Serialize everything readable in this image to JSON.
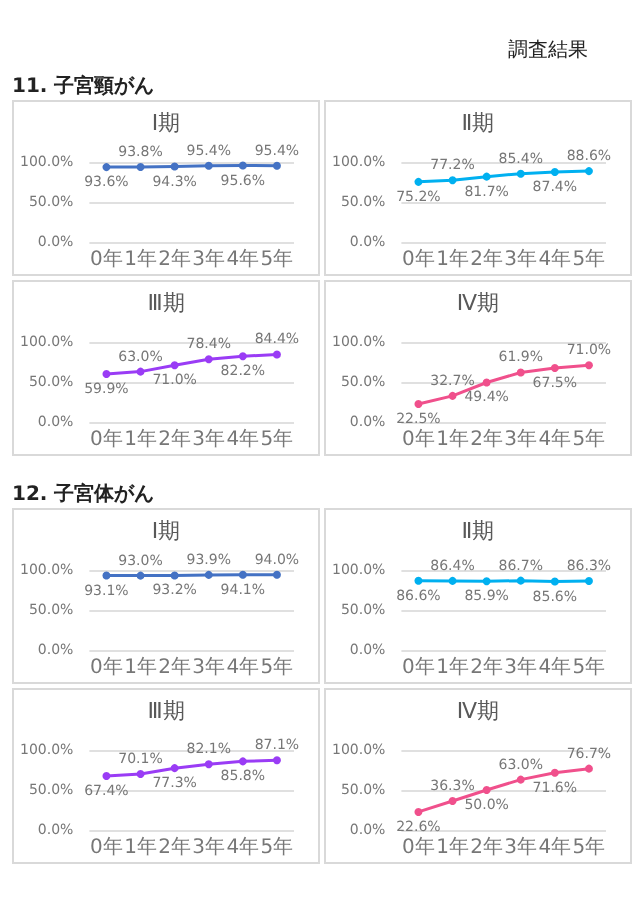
{
  "chart_data": [
    {
      "type": "line",
      "title": "Ⅰ期",
      "subtitle": "11. 子宮頸がん",
      "annotations": [
        "調査結果"
      ],
      "categories": [
        "0年",
        "1年",
        "2年",
        "3年",
        "4年",
        "5年"
      ],
      "values": [
        93.6,
        93.8,
        94.3,
        95.4,
        95.6,
        95.4
      ],
      "value_labels": [
        "93.6%",
        "93.8%",
        "94.3%",
        "95.4%",
        "95.6%",
        "95.4%"
      ],
      "color": "#4472c4",
      "ylim": [
        0,
        100
      ],
      "yticks": [
        {
          "value": 0,
          "label": "0.0%"
        },
        {
          "value": 50,
          "label": "50.0%"
        },
        {
          "value": 100,
          "label": "100.0%"
        }
      ],
      "grid": "y",
      "marker": "circle"
    },
    {
      "type": "line",
      "title": "Ⅱ期",
      "categories": [
        "0年",
        "1年",
        "2年",
        "3年",
        "4年",
        "5年"
      ],
      "values": [
        75.2,
        77.2,
        81.7,
        85.4,
        87.4,
        88.6
      ],
      "value_labels": [
        "75.2%",
        "77.2%",
        "81.7%",
        "85.4%",
        "87.4%",
        "88.6%"
      ],
      "color": "#00b0f0",
      "ylim": [
        0,
        100
      ],
      "yticks": [
        {
          "value": 0,
          "label": "0.0%"
        },
        {
          "value": 50,
          "label": "50.0%"
        },
        {
          "value": 100,
          "label": "100.0%"
        }
      ],
      "grid": "y",
      "marker": "circle"
    },
    {
      "type": "line",
      "title": "Ⅲ期",
      "categories": [
        "0年",
        "1年",
        "2年",
        "3年",
        "4年",
        "5年"
      ],
      "values": [
        59.9,
        63.0,
        71.0,
        78.4,
        82.2,
        84.4
      ],
      "value_labels": [
        "59.9%",
        "63.0%",
        "71.0%",
        "78.4%",
        "82.2%",
        "84.4%"
      ],
      "color": "#9a3cf5",
      "ylim": [
        0,
        100
      ],
      "yticks": [
        {
          "value": 0,
          "label": "0.0%"
        },
        {
          "value": 50,
          "label": "50.0%"
        },
        {
          "value": 100,
          "label": "100.0%"
        }
      ],
      "grid": "y",
      "marker": "circle"
    },
    {
      "type": "line",
      "title": "Ⅳ期",
      "categories": [
        "0年",
        "1年",
        "2年",
        "3年",
        "4年",
        "5年"
      ],
      "values": [
        22.5,
        32.7,
        49.4,
        61.9,
        67.5,
        71.0
      ],
      "value_labels": [
        "22.5%",
        "32.7%",
        "49.4%",
        "61.9%",
        "67.5%",
        "71.0%"
      ],
      "color": "#f0508c",
      "ylim": [
        0,
        100
      ],
      "yticks": [
        {
          "value": 0,
          "label": "0.0%"
        },
        {
          "value": 50,
          "label": "50.0%"
        },
        {
          "value": 100,
          "label": "100.0%"
        }
      ],
      "grid": "y",
      "marker": "circle"
    },
    {
      "type": "line",
      "title": "Ⅰ期",
      "subtitle": "12. 子宮体がん",
      "categories": [
        "0年",
        "1年",
        "2年",
        "3年",
        "4年",
        "5年"
      ],
      "values": [
        93.1,
        93.0,
        93.2,
        93.9,
        94.1,
        94.0
      ],
      "value_labels": [
        "93.1%",
        "93.0%",
        "93.2%",
        "93.9%",
        "94.1%",
        "94.0%"
      ],
      "color": "#4472c4",
      "ylim": [
        0,
        100
      ],
      "yticks": [
        {
          "value": 0,
          "label": "0.0%"
        },
        {
          "value": 50,
          "label": "50.0%"
        },
        {
          "value": 100,
          "label": "100.0%"
        }
      ],
      "grid": "y",
      "marker": "circle"
    },
    {
      "type": "line",
      "title": "Ⅱ期",
      "categories": [
        "0年",
        "1年",
        "2年",
        "3年",
        "4年",
        "5年"
      ],
      "values": [
        86.6,
        86.4,
        85.9,
        86.7,
        85.6,
        86.3
      ],
      "value_labels": [
        "86.6%",
        "86.4%",
        "85.9%",
        "86.7%",
        "85.6%",
        "86.3%"
      ],
      "color": "#00b0f0",
      "ylim": [
        0,
        100
      ],
      "yticks": [
        {
          "value": 0,
          "label": "0.0%"
        },
        {
          "value": 50,
          "label": "50.0%"
        },
        {
          "value": 100,
          "label": "100.0%"
        }
      ],
      "grid": "y",
      "marker": "circle"
    },
    {
      "type": "line",
      "title": "Ⅲ期",
      "categories": [
        "0年",
        "1年",
        "2年",
        "3年",
        "4年",
        "5年"
      ],
      "values": [
        67.4,
        70.1,
        77.3,
        82.1,
        85.8,
        87.1
      ],
      "value_labels": [
        "67.4%",
        "70.1%",
        "77.3%",
        "82.1%",
        "85.8%",
        "87.1%"
      ],
      "color": "#9a3cf5",
      "ylim": [
        0,
        100
      ],
      "yticks": [
        {
          "value": 0,
          "label": "0.0%"
        },
        {
          "value": 50,
          "label": "50.0%"
        },
        {
          "value": 100,
          "label": "100.0%"
        }
      ],
      "grid": "y",
      "marker": "circle"
    },
    {
      "type": "line",
      "title": "Ⅳ期",
      "categories": [
        "0年",
        "1年",
        "2年",
        "3年",
        "4年",
        "5年"
      ],
      "values": [
        22.6,
        36.3,
        50.0,
        63.0,
        71.6,
        76.7
      ],
      "value_labels": [
        "22.6%",
        "36.3%",
        "50.0%",
        "63.0%",
        "71.6%",
        "76.7%"
      ],
      "color": "#f0508c",
      "ylim": [
        0,
        100
      ],
      "yticks": [
        {
          "value": 0,
          "label": "0.0%"
        },
        {
          "value": 50,
          "label": "50.0%"
        },
        {
          "value": 100,
          "label": "100.0%"
        }
      ],
      "grid": "y",
      "marker": "circle"
    }
  ]
}
